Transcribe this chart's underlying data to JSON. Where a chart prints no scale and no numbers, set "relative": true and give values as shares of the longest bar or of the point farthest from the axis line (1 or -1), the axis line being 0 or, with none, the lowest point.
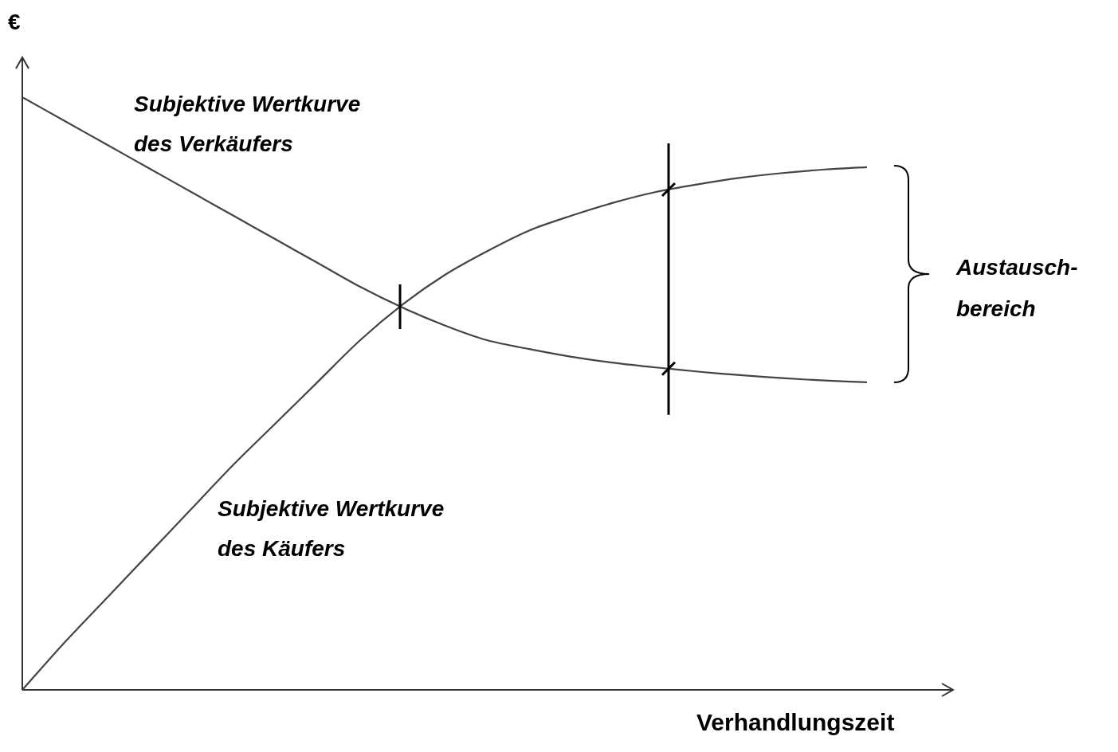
{
  "chart_data": {
    "type": "line",
    "relative": true,
    "xlabel": "Verhandlungszeit",
    "ylabel": "€",
    "categories": [
      null,
      null,
      null,
      null,
      null,
      null,
      null,
      null,
      null,
      null,
      null,
      null,
      null,
      null,
      null,
      null,
      null,
      null,
      null,
      null,
      null
    ],
    "series": [
      {
        "name": "Subjektive Wertkurve des Verkäufers",
        "color": "#444444",
        "values": [
          1.0,
          0.96,
          0.92,
          0.88,
          0.84,
          0.8,
          0.76,
          0.72,
          0.68,
          0.645,
          0.615,
          0.59,
          0.575,
          0.562,
          0.552,
          0.544,
          0.537,
          0.531,
          0.526,
          0.522,
          0.519
        ]
      },
      {
        "name": "Subjektive Wertkurve des Käufers",
        "color": "#444444",
        "values": [
          0,
          0.08,
          0.155,
          0.23,
          0.305,
          0.38,
          0.45,
          0.52,
          0.59,
          0.65,
          0.7,
          0.74,
          0.775,
          0.8,
          0.822,
          0.84,
          0.853,
          0.864,
          0.872,
          0.878,
          0.882
        ]
      }
    ],
    "annotations": [
      "Austausch- bereich"
    ],
    "legend": false,
    "marker": "none",
    "line_style": "solid"
  }
}
